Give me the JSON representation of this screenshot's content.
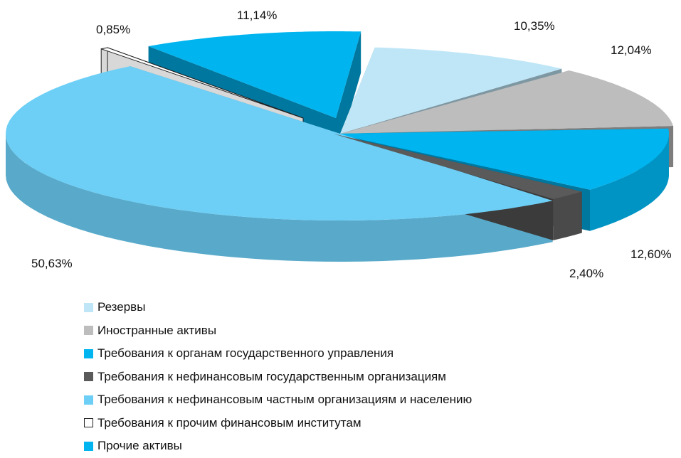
{
  "chart_data": {
    "type": "pie",
    "title": "",
    "categories": [
      "Резервы",
      "Иностранные активы",
      "Требования к органам государственного управления",
      "Требования к нефинансовым государственным организациям",
      "Требования к нефинансовым частным организациям и населению",
      "Требования к прочим финансовым институтам",
      "Прочие активы"
    ],
    "values": [
      10.35,
      12.04,
      12.6,
      2.4,
      50.63,
      0.85,
      11.14
    ],
    "labels": [
      "10,35%",
      "12,04%",
      "12,60%",
      "2,40%",
      "50,63%",
      "0,85%",
      "11,14%"
    ],
    "colors": [
      "#bfe6f7",
      "#bdbdbd",
      "#00b4ef",
      "#5a5a5a",
      "#6dcff6",
      "#ffffff",
      "#00b4ef"
    ],
    "legend_position": "bottom",
    "style": "3d-exploded"
  }
}
